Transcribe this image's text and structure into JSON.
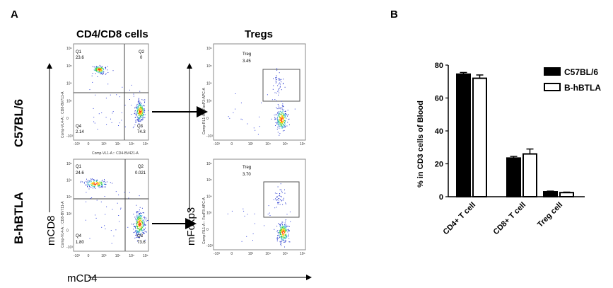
{
  "panel_a": {
    "label": "A",
    "header_cd4cd8": "CD4/CD8 cells",
    "header_tregs": "Tregs",
    "row1": "C57BL/6",
    "row2": "B-hBTLA",
    "x_axis": "mCD4",
    "y_axis_cd8": "mCD8",
    "y_axis_foxp3": "mFoxp3",
    "plot_xaxis_label": "Comp-VL1-A :: CD4-BV421-A",
    "plot_yaxis_label": "Comp-VL4-A :: CD8-BV711-A",
    "treg_yaxis_label": "Comp-RL1-A :: FoxP3-APC-A",
    "plots": {
      "p1": {
        "q1_name": "Q1",
        "q1_val": "23.6",
        "q2_name": "Q2",
        "q2_val": "0",
        "q3_name": "Q3",
        "q3_val": "74.3",
        "q4_name": "Q4",
        "q4_val": "2.14"
      },
      "p2": {
        "q1_name": "Q1",
        "q1_val": "24.6",
        "q2_name": "Q2",
        "q2_val": "0.021",
        "q3_name": "Q3",
        "q3_val": "73.6",
        "q4_name": "Q4",
        "q4_val": "1.80"
      },
      "t1": {
        "gate_name": "Treg",
        "gate_val": "3.45"
      },
      "t2": {
        "gate_name": "Treg",
        "gate_val": "3.70"
      }
    },
    "tick_x": [
      "-10³",
      "0",
      "10³",
      "10⁴",
      "10⁵",
      "10⁶"
    ],
    "tick_y": [
      "10⁶",
      "10⁵",
      "10⁴",
      "10³",
      "0",
      "-10³"
    ]
  },
  "chart_data": {
    "type": "bar",
    "panel_label": "B",
    "categories": [
      "CD4+ T cell",
      "CD8+ T cell",
      "Treg cell"
    ],
    "series": [
      {
        "name": "C57BL/6",
        "values": [
          74.5,
          23.5,
          3.0
        ],
        "errors": [
          1.0,
          1.0,
          0.4
        ],
        "fill": "#000000"
      },
      {
        "name": "B-hBTLA",
        "values": [
          72.0,
          26.0,
          2.5
        ],
        "errors": [
          2.0,
          3.0,
          0.3
        ],
        "fill": "#ffffff"
      }
    ],
    "ylabel": "% in CD3 cells of Blood",
    "xlabel": "",
    "ylim": [
      0,
      80
    ],
    "yticks": [
      "0",
      "20",
      "40",
      "60",
      "80"
    ],
    "legend_position": "top-right"
  }
}
